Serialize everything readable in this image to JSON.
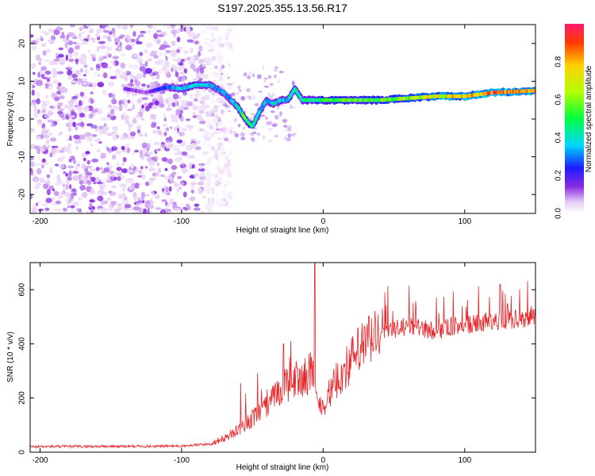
{
  "chart_data": [
    {
      "type": "heatmap",
      "title": "S197.2025.355.13.56.R17",
      "xlabel": "Height of straight line (km)",
      "ylabel": "Frequency (Hz)",
      "xlim": [
        -207,
        150
      ],
      "ylim": [
        -25,
        25
      ],
      "xticks": [
        -200,
        -100,
        0,
        100
      ],
      "yticks": [
        -20,
        -10,
        0,
        10,
        20
      ],
      "colorbar": {
        "label": "Normalized spectral amplitude",
        "range": [
          0,
          1
        ],
        "ticks": [
          "0.0",
          "0.2",
          "0.4",
          "0.6",
          "0.8"
        ],
        "tick_values": [
          0.0,
          0.2,
          0.4,
          0.6,
          0.8
        ]
      },
      "ridge": {
        "x": [
          -140,
          -125,
          -110,
          -100,
          -90,
          -80,
          -70,
          -60,
          -55,
          -50,
          -45,
          -40,
          -35,
          -30,
          -25,
          -20,
          -15,
          -10,
          0,
          20,
          40,
          60,
          80,
          100,
          120,
          150
        ],
        "freq": [
          8,
          7,
          8.5,
          8,
          9,
          9,
          7,
          3,
          0,
          -2,
          2,
          5,
          4,
          5,
          5,
          8,
          5,
          5,
          5,
          5,
          5,
          5.5,
          6,
          6,
          7,
          7.5
        ],
        "amplitude": [
          0.15,
          0.1,
          0.3,
          0.35,
          0.4,
          0.35,
          0.3,
          0.4,
          0.5,
          0.45,
          0.4,
          0.35,
          0.4,
          0.35,
          0.35,
          0.45,
          0.4,
          0.45,
          0.5,
          0.55,
          0.55,
          0.6,
          0.7,
          0.75,
          0.85,
          0.75
        ]
      },
      "noise_region_x": [
        -207,
        -80
      ]
    },
    {
      "type": "line",
      "xlabel": "Height of straight line (km)",
      "ylabel": "SNR (10 * v/v)",
      "xlim": [
        -207,
        150
      ],
      "ylim": [
        0,
        700
      ],
      "xticks": [
        -200,
        -100,
        0,
        100
      ],
      "yticks": [
        0,
        200,
        400,
        600
      ],
      "series": [
        {
          "name": "SNR",
          "color": "#e8262a",
          "envelope_x": [
            -207,
            -100,
            -80,
            -70,
            -60,
            -50,
            -40,
            -30,
            -20,
            -10,
            -8,
            -5,
            0,
            10,
            20,
            30,
            40,
            50,
            60,
            70,
            80,
            90,
            100,
            110,
            120,
            130,
            140,
            150
          ],
          "envelope_y": [
            20,
            22,
            30,
            50,
            80,
            120,
            160,
            230,
            260,
            280,
            300,
            180,
            170,
            260,
            330,
            390,
            430,
            450,
            460,
            455,
            440,
            460,
            465,
            470,
            480,
            485,
            490,
            495
          ],
          "peaks": [
            {
              "x": -6,
              "y": 700
            },
            {
              "x": -28,
              "y": 400
            },
            {
              "x": 125,
              "y": 620
            }
          ]
        }
      ]
    }
  ],
  "colors": {
    "line": "#e8262a",
    "background": "#ffffff",
    "axis": "#000000"
  }
}
